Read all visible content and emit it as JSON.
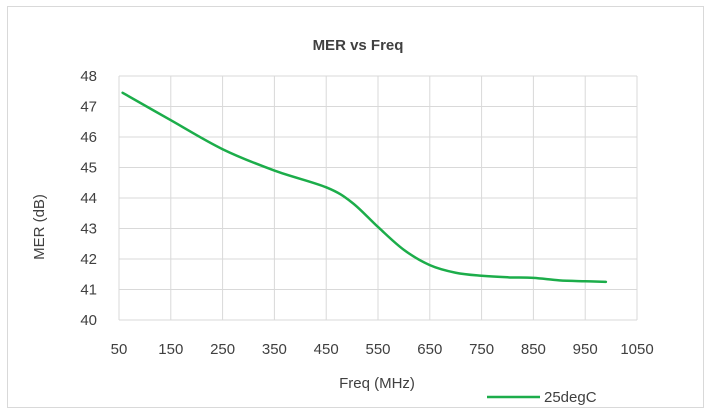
{
  "chart_data": {
    "type": "line",
    "title": "MER vs Freq",
    "xlabel": "Freq (MHz)",
    "ylabel": "MER (dB)",
    "xlim": [
      50,
      1050
    ],
    "ylim": [
      40,
      48
    ],
    "x_ticks": [
      "50",
      "150",
      "250",
      "350",
      "450",
      "550",
      "650",
      "750",
      "850",
      "950",
      "1050"
    ],
    "y_ticks": [
      "40",
      "41",
      "42",
      "43",
      "44",
      "45",
      "46",
      "47",
      "48"
    ],
    "grid": true,
    "legend_position": "bottom-right",
    "series": [
      {
        "name": "25degC",
        "color": "#1cad4a",
        "x": [
          57,
          150,
          250,
          350,
          450,
          500,
          550,
          600,
          650,
          700,
          750,
          800,
          850,
          900,
          950,
          990
        ],
        "y": [
          47.45,
          46.55,
          45.6,
          44.9,
          44.35,
          43.85,
          43.05,
          42.3,
          41.8,
          41.55,
          41.45,
          41.4,
          41.38,
          41.3,
          41.27,
          41.25
        ]
      }
    ]
  }
}
